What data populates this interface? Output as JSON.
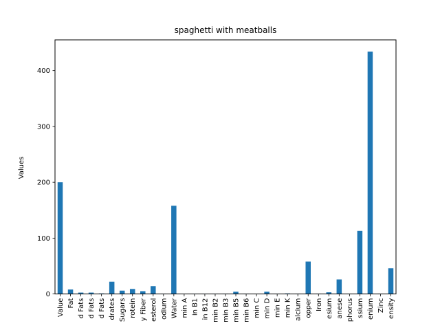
{
  "chart_data": {
    "type": "bar",
    "title": "spaghetti with meatballs",
    "xlabel": "",
    "ylabel": "Values",
    "ylim": [
      0,
      455
    ],
    "yticks": [
      0,
      100,
      200,
      300,
      400
    ],
    "bar_color": "#1f77b4",
    "grid": false,
    "legend": "none",
    "categories": [
      "Value",
      "Fat",
      "d Fats",
      "d Fats",
      "d Fats",
      "drates",
      "Sugars",
      "rotein",
      "y Fiber",
      "esterol",
      "odium",
      "Water",
      "min A",
      "in B1",
      "in B12",
      "min B2",
      "min B3",
      "min B5",
      "min B6",
      "min C",
      "min D",
      "min E",
      "min K",
      "alcium",
      "opper",
      "Iron",
      "esium",
      "anese",
      "phorus",
      "ssium",
      "enium",
      "Zinc",
      "ensity"
    ],
    "values": [
      200,
      8,
      2.5,
      2.5,
      1,
      22,
      6,
      9,
      5,
      14,
      0.5,
      158,
      0.2,
      0.3,
      0.3,
      0.3,
      0.5,
      4,
      0.5,
      0.2,
      4,
      0.3,
      1,
      0.5,
      58,
      0.5,
      3,
      26,
      0.3,
      113,
      434,
      0.5,
      46
    ]
  }
}
